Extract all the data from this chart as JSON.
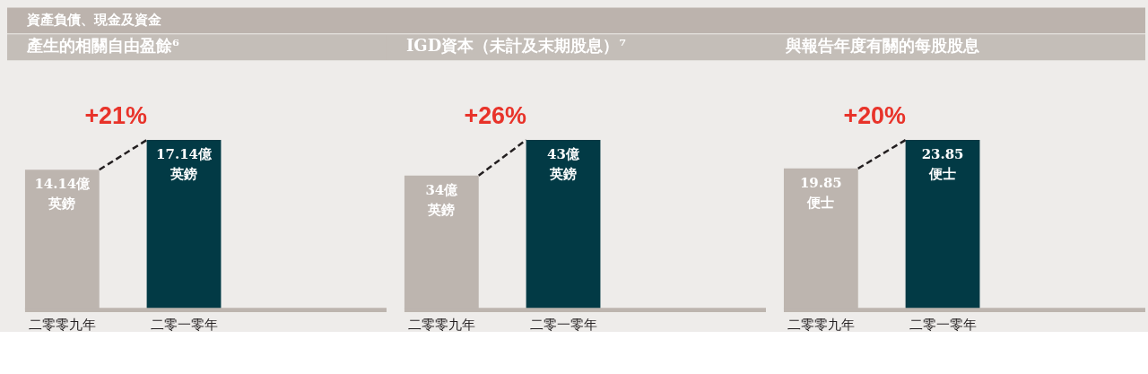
{
  "chart_data": [
    {
      "type": "bar",
      "title": "資產負債、現金及資金",
      "subtitle": "產生的相關自由盈餘⁶",
      "categories": [
        "二零零九年",
        "二零一零年"
      ],
      "values": [
        14.14,
        17.14
      ],
      "colors": [
        "#bdb5af",
        "#023a45"
      ],
      "value_labels": [
        "14.14億英鎊",
        "17.14億英鎊"
      ],
      "tick_labels": "x",
      "annotations": [
        "+21%"
      ]
    },
    {
      "type": "bar",
      "subtitle": "IGD資本（未計及末期股息）⁷",
      "categories": [
        "二零零九年",
        "二零一零年"
      ],
      "values": [
        34,
        43
      ],
      "colors": [
        "#bdb5af",
        "#023a45"
      ],
      "value_labels": [
        "34億英鎊",
        "43億英鎊"
      ],
      "tick_labels": "x",
      "annotations": [
        "+26%"
      ]
    },
    {
      "type": "bar",
      "subtitle": "與報告年度有關的每股股息",
      "categories": [
        "二零零九年",
        "二零一零年"
      ],
      "values": [
        19.85,
        23.85
      ],
      "colors": [
        "#bdb5af",
        "#023a45"
      ],
      "value_labels": [
        "19.85便士",
        "23.85便士"
      ],
      "tick_labels": "x",
      "annotations": [
        "+20%"
      ]
    }
  ]
}
